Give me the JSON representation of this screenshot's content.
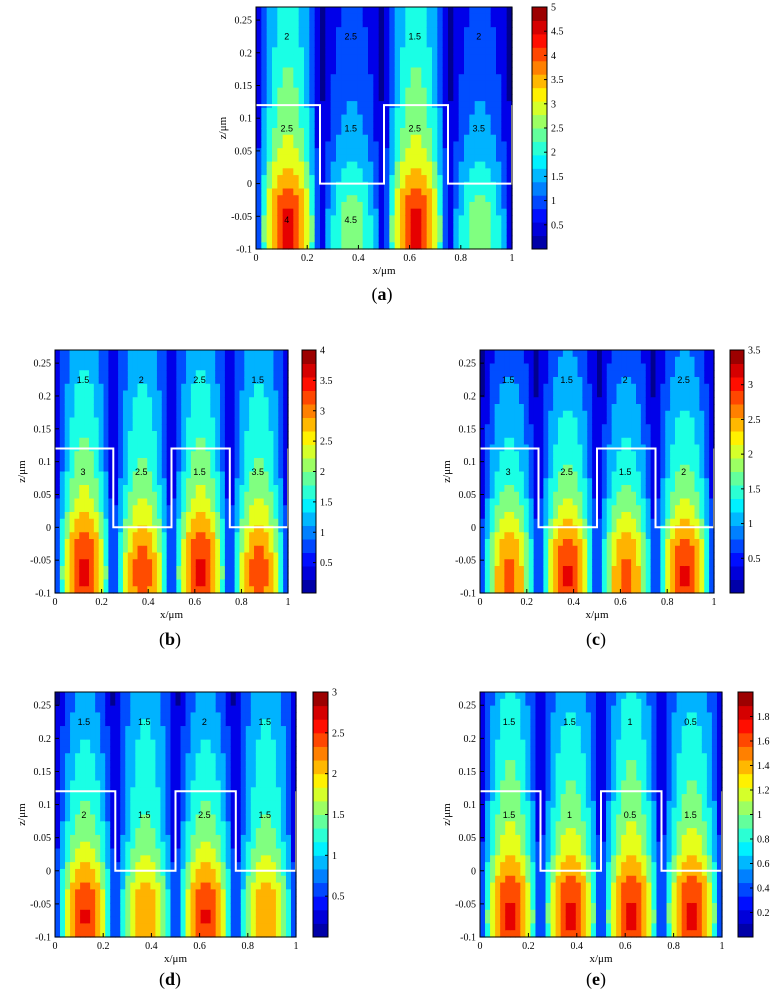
{
  "figure": {
    "grating_outline_color": "#ffffff",
    "contour_line_color": "#000000",
    "colormap": [
      "#00008f",
      "#0000ff",
      "#007fff",
      "#00ffff",
      "#7fff7f",
      "#ffff00",
      "#ff7f00",
      "#ff0000",
      "#7f0000"
    ]
  },
  "chart_data": [
    {
      "id": "a",
      "type": "heatmap",
      "caption_letter": "a",
      "xlabel": "x/μm",
      "ylabel": "z/μm",
      "xlim": [
        0,
        1
      ],
      "ylim": [
        -0.1,
        0.27
      ],
      "xticks": [
        "0",
        "0.2",
        "0.4",
        "0.6",
        "0.8",
        "1"
      ],
      "yticks": [
        "-0.1",
        "-0.05",
        "0",
        "0.05",
        "0.1",
        "0.15",
        "0.2",
        "0.25"
      ],
      "colorbar_range": [
        0,
        5
      ],
      "colorbar_ticks": [
        "0.5",
        "1",
        "1.5",
        "2",
        "2.5",
        "3",
        "3.5",
        "4",
        "4.5",
        "5"
      ],
      "contour_labels": [
        "2",
        "2.5",
        "1.5",
        "2",
        "2.5",
        "1.5",
        "2.5",
        "3.5",
        "4",
        "4.5"
      ],
      "grating": {
        "height": 0.12,
        "period": 0.5,
        "ridge_width": 0.25
      },
      "peak_low": 4.9,
      "peak_high": 2.6,
      "gap_low": 3.0,
      "gap_high": 1.6
    },
    {
      "id": "b",
      "type": "heatmap",
      "caption_letter": "b",
      "xlabel": "x/μm",
      "ylabel": "z/μm",
      "xlim": [
        0,
        1
      ],
      "ylim": [
        -0.1,
        0.27
      ],
      "xticks": [
        "0",
        "0.2",
        "0.4",
        "0.6",
        "0.8",
        "1"
      ],
      "yticks": [
        "-0.1",
        "-0.05",
        "0",
        "0.05",
        "0.1",
        "0.15",
        "0.2",
        "0.25"
      ],
      "colorbar_range": [
        0,
        4
      ],
      "colorbar_ticks": [
        "0.5",
        "1",
        "1.5",
        "2",
        "2.5",
        "3",
        "3.5",
        "4"
      ],
      "contour_labels": [
        "1.5",
        "2",
        "2.5",
        "1.5",
        "3",
        "2.5",
        "1.5",
        "3.5"
      ],
      "grating": {
        "height": 0.12,
        "period": 0.5,
        "ridge_width": 0.25
      },
      "peak_low": 3.9,
      "peak_high": 1.8,
      "gap_low": 3.6,
      "gap_high": 2.1
    },
    {
      "id": "c",
      "type": "heatmap",
      "caption_letter": "c",
      "xlabel": "x/μm",
      "ylabel": "z/μm",
      "xlim": [
        0,
        1
      ],
      "ylim": [
        -0.1,
        0.27
      ],
      "xticks": [
        "0",
        "0.2",
        "0.4",
        "0.6",
        "0.8",
        "1"
      ],
      "yticks": [
        "-0.1",
        "-0.05",
        "0",
        "0.05",
        "0.1",
        "0.15",
        "0.2",
        "0.25"
      ],
      "colorbar_range": [
        0,
        3.5
      ],
      "colorbar_ticks": [
        "0.5",
        "1",
        "1.5",
        "2",
        "2.5",
        "3",
        "3.5"
      ],
      "contour_labels": [
        "1.5",
        "1.5",
        "2",
        "2.5",
        "3",
        "2.5",
        "1.5",
        "2"
      ],
      "grating": {
        "height": 0.12,
        "period": 0.5,
        "ridge_width": 0.25
      },
      "peak_low": 3.1,
      "peak_high": 1.0,
      "gap_low": 3.4,
      "gap_high": 1.6
    },
    {
      "id": "d",
      "type": "heatmap",
      "caption_letter": "d",
      "xlabel": "x/μm",
      "ylabel": "z/μm",
      "xlim": [
        0,
        1
      ],
      "ylim": [
        -0.1,
        0.27
      ],
      "xticks": [
        "0",
        "0.2",
        "0.4",
        "0.6",
        "0.8",
        "1"
      ],
      "yticks": [
        "-0.1",
        "-0.05",
        "0",
        "0.05",
        "0.1",
        "0.15",
        "0.2",
        "0.25"
      ],
      "colorbar_range": [
        0,
        3
      ],
      "colorbar_ticks": [
        "0.5",
        "1",
        "1.5",
        "2",
        "2.5",
        "3"
      ],
      "contour_labels": [
        "1.5",
        "1.5",
        "2",
        "1.5",
        "2",
        "1.5",
        "2.5",
        "1.5"
      ],
      "grating": {
        "height": 0.12,
        "period": 0.5,
        "ridge_width": 0.25
      },
      "peak_low": 2.9,
      "peak_high": 1.1,
      "gap_low": 2.4,
      "gap_high": 1.7
    },
    {
      "id": "e",
      "type": "heatmap",
      "caption_letter": "e",
      "xlabel": "x/μm",
      "ylabel": "z/μm",
      "xlim": [
        0,
        1
      ],
      "ylim": [
        -0.1,
        0.27
      ],
      "xticks": [
        "0",
        "0.2",
        "0.4",
        "0.6",
        "0.8",
        "1"
      ],
      "yticks": [
        "-0.1",
        "-0.05",
        "0",
        "0.05",
        "0.1",
        "0.15",
        "0.2",
        "0.25"
      ],
      "colorbar_range": [
        0,
        2
      ],
      "colorbar_ticks": [
        "0.2",
        "0.4",
        "0.6",
        "0.8",
        "1",
        "1.2",
        "1.4",
        "1.6",
        "1.8"
      ],
      "contour_labels": [
        "1.5",
        "1.5",
        "1",
        "0.5",
        "1.5",
        "1",
        "0.5",
        "1.5"
      ],
      "grating": {
        "height": 0.12,
        "period": 0.5,
        "ridge_width": 0.25
      },
      "peak_low": 1.95,
      "peak_high": 0.9,
      "gap_low": 1.95,
      "gap_high": 1.2
    }
  ]
}
